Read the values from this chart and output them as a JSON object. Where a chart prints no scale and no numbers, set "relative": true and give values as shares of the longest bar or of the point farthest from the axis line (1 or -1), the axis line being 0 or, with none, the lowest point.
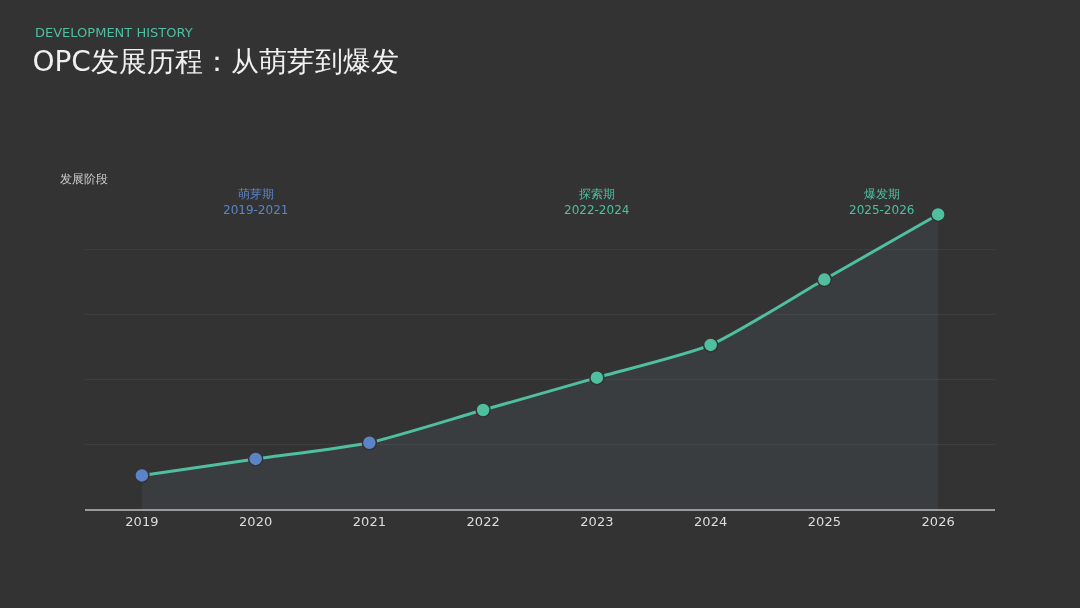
{
  "chart_data": {
    "type": "area",
    "subtitle": "DEVELOPMENT HISTORY",
    "title": "OPC发展历程：从萌芽到爆发",
    "ylabel": "发展阶段",
    "categories": [
      "2019",
      "2020",
      "2021",
      "2022",
      "2023",
      "2024",
      "2025",
      "2026"
    ],
    "relative": true,
    "series": [
      {
        "color": "#4fbfa0",
        "colors": [
          "#5b84c8",
          "#5b84c8",
          "#5b84c8",
          "#4fbfa0",
          "#4fbfa0",
          "#4fbfa0",
          "#4fbfa0",
          "#4fbfa0"
        ],
        "values": [
          0.114,
          0.17,
          0.225,
          0.336,
          0.446,
          0.557,
          0.779,
          1
        ]
      }
    ],
    "annotations": [
      "萌芽期\n2019-2021",
      "探索期\n2022-2024",
      "爆发期\n2025-2026"
    ],
    "marker": "circle",
    "grid": "y",
    "legend": false
  }
}
